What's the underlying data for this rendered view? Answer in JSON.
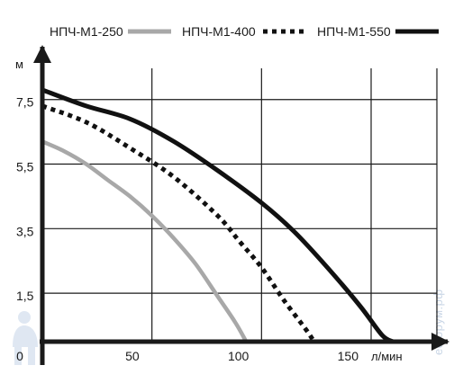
{
  "chart_data": {
    "type": "line",
    "xlabel": "л/мин",
    "ylabel": "м",
    "xlim": [
      0,
      180
    ],
    "ylim": [
      0,
      8.3
    ],
    "x_ticks": [
      {
        "value": 0,
        "label": "0"
      },
      {
        "value": 50,
        "label": "50"
      },
      {
        "value": 100,
        "label": "100"
      },
      {
        "value": 150,
        "label": "150"
      }
    ],
    "y_ticks": [
      {
        "value": 1.5,
        "label": "1,5"
      },
      {
        "value": 3.5,
        "label": "3,5"
      },
      {
        "value": 5.5,
        "label": "5,5"
      },
      {
        "value": 7.5,
        "label": "7,5"
      }
    ],
    "x_grid": [
      0,
      50,
      100,
      150,
      180
    ],
    "y_grid": [
      0,
      1.5,
      3.5,
      5.5,
      7.5
    ],
    "grid": true,
    "legend": "top",
    "series": [
      {
        "name": "НПЧ-М1-250",
        "color": "#a8a8a8",
        "style": "solid",
        "x": [
          0,
          10,
          20,
          30,
          40,
          50,
          60,
          70,
          80,
          88,
          93
        ],
        "y": [
          6.2,
          5.9,
          5.5,
          5.0,
          4.5,
          3.9,
          3.2,
          2.4,
          1.4,
          0.6,
          0
        ]
      },
      {
        "name": "НПЧ-М1-400",
        "color": "#111111",
        "style": "dotted",
        "x": [
          0,
          20,
          40,
          60,
          80,
          90,
          100,
          110,
          120,
          124
        ],
        "y": [
          7.3,
          6.8,
          6.0,
          5.1,
          3.9,
          3.1,
          2.3,
          1.3,
          0.4,
          0
        ]
      },
      {
        "name": "НПЧ-М1-550",
        "color": "#111111",
        "style": "solid",
        "x": [
          0,
          20,
          40,
          60,
          80,
          100,
          115,
          130,
          145,
          155,
          160
        ],
        "y": [
          7.8,
          7.3,
          6.9,
          6.2,
          5.3,
          4.3,
          3.4,
          2.3,
          1.1,
          0.2,
          0
        ]
      }
    ]
  },
  "watermark": "ефорум.рф"
}
